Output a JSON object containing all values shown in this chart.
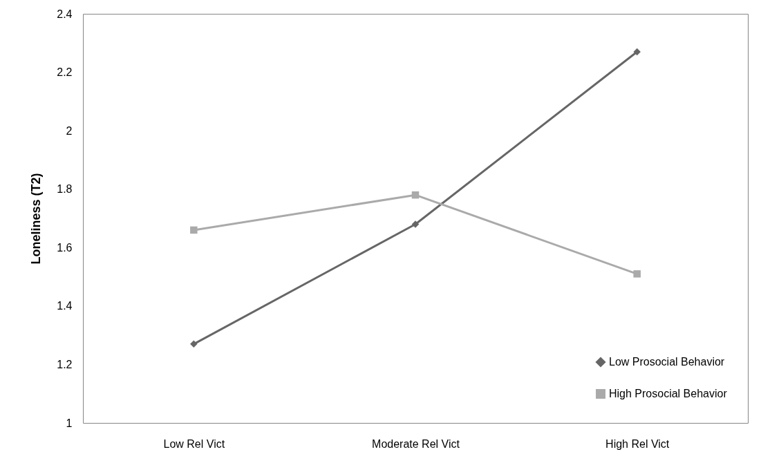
{
  "chart_data": {
    "type": "line",
    "ylabel": "Loneliness (T2)",
    "categories": [
      "Low Rel Vict",
      "Moderate Rel Vict",
      "High Rel Vict"
    ],
    "series": [
      {
        "name": "Low Prosocial Behavior",
        "color": "#666666",
        "marker": "diamond",
        "values": [
          1.27,
          1.68,
          2.27
        ]
      },
      {
        "name": "High Prosocial Behavior",
        "color": "#aaaaaa",
        "marker": "square",
        "values": [
          1.66,
          1.78,
          1.51
        ]
      }
    ],
    "ylim": [
      1,
      2.4
    ],
    "yticks": [
      1,
      1.2,
      1.4,
      1.6,
      1.8,
      2,
      2.2,
      2.4
    ],
    "grid": false,
    "legend": "bottom right"
  }
}
